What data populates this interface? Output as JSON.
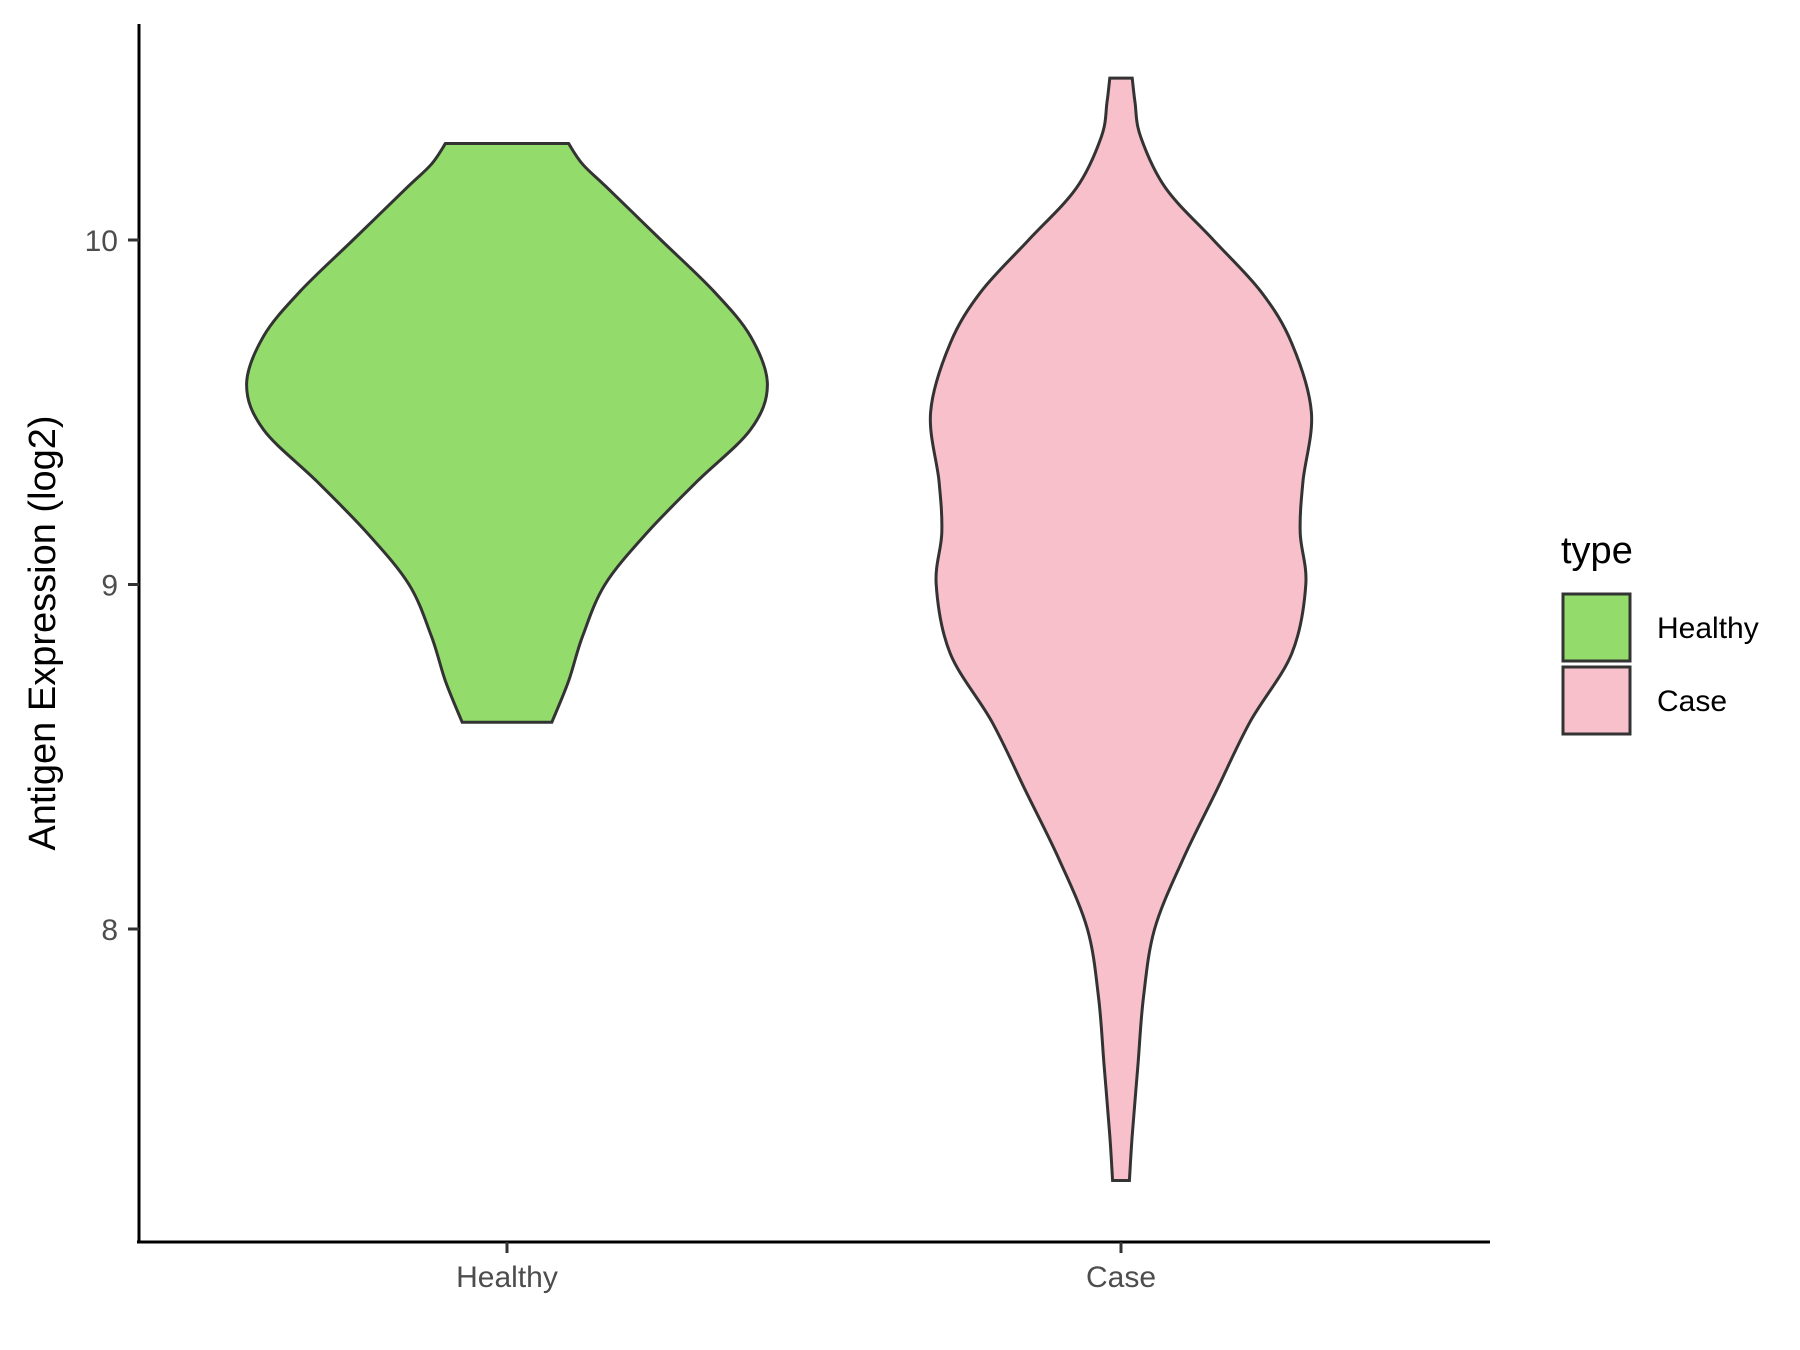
{
  "chart_data": {
    "type": "violin",
    "xlabel": "",
    "ylabel": "Antigen Expression (log2)",
    "categories": [
      "Healthy",
      "Case"
    ],
    "ylim": [
      7.1,
      10.6
    ],
    "yticks": [
      8,
      9,
      10
    ],
    "grid": false,
    "legend": {
      "title": "type",
      "placement": "right",
      "entries": [
        {
          "label": "Healthy",
          "color": "#93dc6b"
        },
        {
          "label": "Case",
          "color": "#f7c0cb"
        }
      ]
    },
    "series": [
      {
        "category": "Healthy",
        "color": "#93dc6b",
        "profile": [
          [
            10.28,
            0.22
          ],
          [
            10.22,
            0.27
          ],
          [
            10.15,
            0.36
          ],
          [
            10.0,
            0.55
          ],
          [
            9.85,
            0.74
          ],
          [
            9.72,
            0.87
          ],
          [
            9.58,
            0.93
          ],
          [
            9.45,
            0.87
          ],
          [
            9.3,
            0.68
          ],
          [
            9.15,
            0.5
          ],
          [
            9.0,
            0.35
          ],
          [
            8.85,
            0.27
          ],
          [
            8.72,
            0.22
          ],
          [
            8.6,
            0.16
          ]
        ]
      },
      {
        "category": "Case",
        "color": "#f7c0cb",
        "profile": [
          [
            10.47,
            0.04
          ],
          [
            10.4,
            0.05
          ],
          [
            10.3,
            0.07
          ],
          [
            10.15,
            0.16
          ],
          [
            10.0,
            0.33
          ],
          [
            9.85,
            0.5
          ],
          [
            9.7,
            0.61
          ],
          [
            9.5,
            0.68
          ],
          [
            9.3,
            0.65
          ],
          [
            9.15,
            0.64
          ],
          [
            9.0,
            0.66
          ],
          [
            8.8,
            0.61
          ],
          [
            8.6,
            0.46
          ],
          [
            8.4,
            0.34
          ],
          [
            8.2,
            0.22
          ],
          [
            8.0,
            0.12
          ],
          [
            7.8,
            0.08
          ],
          [
            7.6,
            0.06
          ],
          [
            7.4,
            0.04
          ],
          [
            7.27,
            0.03
          ]
        ]
      }
    ]
  }
}
